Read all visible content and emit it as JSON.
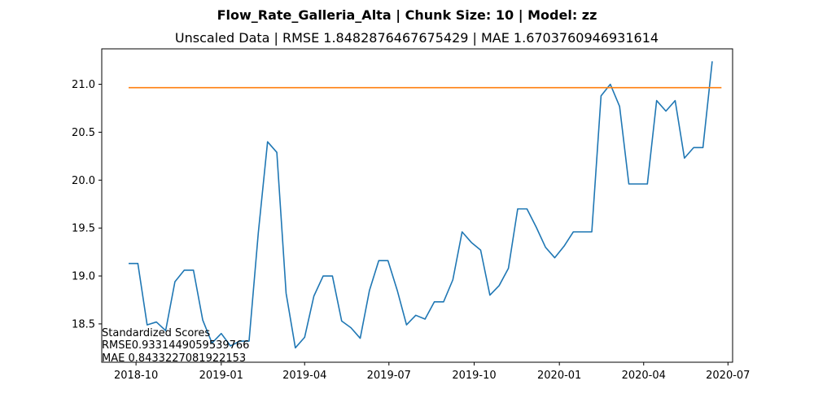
{
  "figure": {
    "suptitle": "Flow_Rate_Galleria_Alta | Chunk Size: 10 | Model: zz",
    "title": "Unscaled Data | RMSE 1.8482876467675429 | MAE 1.6703760946931614"
  },
  "annotation": {
    "line1": "Standardized Scores",
    "line2": "RMSE0.9331449059539766",
    "line3": "MAE 0.8433227081922153"
  },
  "chart_data": {
    "type": "line",
    "title": "Unscaled Data | RMSE 1.8482876467675429 | MAE 1.6703760946931614",
    "xlabel": "",
    "ylabel": "",
    "xlim": [
      "2018-08-25",
      "2020-07-06"
    ],
    "ylim": [
      18.1,
      21.37
    ],
    "x_ticks": [
      "2018-10-01",
      "2019-01-01",
      "2019-04-01",
      "2019-07-01",
      "2019-10-01",
      "2020-01-01",
      "2020-04-01",
      "2020-07-01"
    ],
    "x_tick_labels": [
      "2018-10",
      "2019-01",
      "2019-04",
      "2019-07",
      "2019-10",
      "2020-01",
      "2020-04",
      "2020-07"
    ],
    "y_ticks": [
      18.5,
      19.0,
      19.5,
      20.0,
      20.5,
      21.0
    ],
    "y_tick_labels": [
      "18.5",
      "19.0",
      "19.5",
      "20.0",
      "20.5",
      "21.0"
    ],
    "grid": false,
    "legend": "none",
    "series": [
      {
        "color": "#1f77b4",
        "x": [
          "2018-09-23",
          "2018-10-03",
          "2018-10-13",
          "2018-10-23",
          "2018-11-02",
          "2018-11-12",
          "2018-11-22",
          "2018-12-02",
          "2018-12-12",
          "2018-12-22",
          "2019-01-01",
          "2019-01-11",
          "2019-01-21",
          "2019-01-31",
          "2019-02-10",
          "2019-02-20",
          "2019-03-02",
          "2019-03-12",
          "2019-03-22",
          "2019-04-01",
          "2019-04-11",
          "2019-04-21",
          "2019-05-01",
          "2019-05-11",
          "2019-05-21",
          "2019-05-31",
          "2019-06-10",
          "2019-06-20",
          "2019-06-30",
          "2019-07-10",
          "2019-07-20",
          "2019-07-30",
          "2019-08-09",
          "2019-08-19",
          "2019-08-29",
          "2019-09-08",
          "2019-09-18",
          "2019-09-28",
          "2019-10-08",
          "2019-10-18",
          "2019-10-28",
          "2019-11-07",
          "2019-11-17",
          "2019-11-27",
          "2019-12-07",
          "2019-12-17",
          "2019-12-27",
          "2020-01-06",
          "2020-01-16",
          "2020-01-26",
          "2020-02-05",
          "2020-02-15",
          "2020-02-25",
          "2020-03-06",
          "2020-03-16",
          "2020-03-26",
          "2020-04-05",
          "2020-04-15",
          "2020-04-25",
          "2020-05-05",
          "2020-05-15",
          "2020-05-25",
          "2020-06-04",
          "2020-06-14"
        ],
        "y": [
          19.13,
          19.13,
          18.49,
          18.52,
          18.43,
          18.94,
          19.06,
          19.06,
          18.54,
          18.3,
          18.4,
          18.27,
          18.32,
          18.32,
          19.45,
          20.4,
          20.29,
          18.82,
          18.25,
          18.36,
          18.79,
          19.0,
          19.0,
          18.53,
          18.46,
          18.35,
          18.85,
          19.16,
          19.16,
          18.85,
          18.49,
          18.59,
          18.55,
          18.73,
          18.73,
          18.96,
          19.46,
          19.35,
          19.27,
          18.8,
          18.9,
          19.08,
          19.7,
          19.7,
          19.51,
          19.3,
          19.19,
          19.31,
          19.46,
          19.46,
          19.46,
          20.88,
          21.0,
          20.77,
          19.96,
          19.96,
          19.96,
          20.83,
          20.72,
          20.83,
          20.23,
          20.34,
          20.34,
          21.24
        ]
      },
      {
        "color": "#ff7f0e",
        "x": [
          "2018-09-23",
          "2020-06-24"
        ],
        "y": [
          20.965,
          20.965
        ]
      }
    ]
  }
}
